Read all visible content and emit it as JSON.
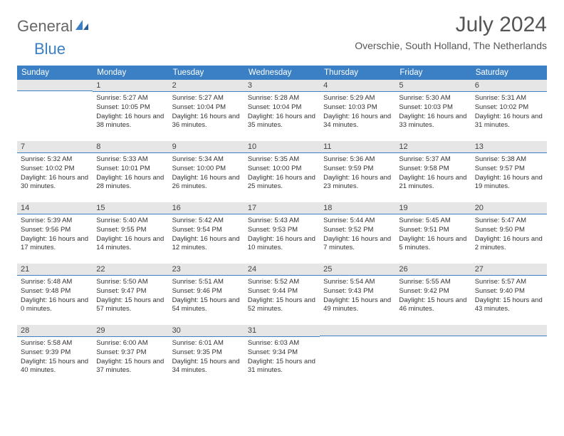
{
  "brand": {
    "part1": "General",
    "part2": "Blue"
  },
  "title": "July 2024",
  "location": "Overschie, South Holland, The Netherlands",
  "columns": [
    "Sunday",
    "Monday",
    "Tuesday",
    "Wednesday",
    "Thursday",
    "Friday",
    "Saturday"
  ],
  "colors": {
    "header_bg": "#3b7fc4",
    "header_text": "#ffffff",
    "daynum_bg": "#e6e6e6",
    "daynum_border": "#3b7fc4",
    "body_text": "#333333",
    "title_text": "#555555",
    "page_bg": "#ffffff"
  },
  "weeks": [
    [
      null,
      {
        "n": "1",
        "sr": "5:27 AM",
        "ss": "10:05 PM",
        "dl": "16 hours and 38 minutes."
      },
      {
        "n": "2",
        "sr": "5:27 AM",
        "ss": "10:04 PM",
        "dl": "16 hours and 36 minutes."
      },
      {
        "n": "3",
        "sr": "5:28 AM",
        "ss": "10:04 PM",
        "dl": "16 hours and 35 minutes."
      },
      {
        "n": "4",
        "sr": "5:29 AM",
        "ss": "10:03 PM",
        "dl": "16 hours and 34 minutes."
      },
      {
        "n": "5",
        "sr": "5:30 AM",
        "ss": "10:03 PM",
        "dl": "16 hours and 33 minutes."
      },
      {
        "n": "6",
        "sr": "5:31 AM",
        "ss": "10:02 PM",
        "dl": "16 hours and 31 minutes."
      }
    ],
    [
      {
        "n": "7",
        "sr": "5:32 AM",
        "ss": "10:02 PM",
        "dl": "16 hours and 30 minutes."
      },
      {
        "n": "8",
        "sr": "5:33 AM",
        "ss": "10:01 PM",
        "dl": "16 hours and 28 minutes."
      },
      {
        "n": "9",
        "sr": "5:34 AM",
        "ss": "10:00 PM",
        "dl": "16 hours and 26 minutes."
      },
      {
        "n": "10",
        "sr": "5:35 AM",
        "ss": "10:00 PM",
        "dl": "16 hours and 25 minutes."
      },
      {
        "n": "11",
        "sr": "5:36 AM",
        "ss": "9:59 PM",
        "dl": "16 hours and 23 minutes."
      },
      {
        "n": "12",
        "sr": "5:37 AM",
        "ss": "9:58 PM",
        "dl": "16 hours and 21 minutes."
      },
      {
        "n": "13",
        "sr": "5:38 AM",
        "ss": "9:57 PM",
        "dl": "16 hours and 19 minutes."
      }
    ],
    [
      {
        "n": "14",
        "sr": "5:39 AM",
        "ss": "9:56 PM",
        "dl": "16 hours and 17 minutes."
      },
      {
        "n": "15",
        "sr": "5:40 AM",
        "ss": "9:55 PM",
        "dl": "16 hours and 14 minutes."
      },
      {
        "n": "16",
        "sr": "5:42 AM",
        "ss": "9:54 PM",
        "dl": "16 hours and 12 minutes."
      },
      {
        "n": "17",
        "sr": "5:43 AM",
        "ss": "9:53 PM",
        "dl": "16 hours and 10 minutes."
      },
      {
        "n": "18",
        "sr": "5:44 AM",
        "ss": "9:52 PM",
        "dl": "16 hours and 7 minutes."
      },
      {
        "n": "19",
        "sr": "5:45 AM",
        "ss": "9:51 PM",
        "dl": "16 hours and 5 minutes."
      },
      {
        "n": "20",
        "sr": "5:47 AM",
        "ss": "9:50 PM",
        "dl": "16 hours and 2 minutes."
      }
    ],
    [
      {
        "n": "21",
        "sr": "5:48 AM",
        "ss": "9:48 PM",
        "dl": "16 hours and 0 minutes."
      },
      {
        "n": "22",
        "sr": "5:50 AM",
        "ss": "9:47 PM",
        "dl": "15 hours and 57 minutes."
      },
      {
        "n": "23",
        "sr": "5:51 AM",
        "ss": "9:46 PM",
        "dl": "15 hours and 54 minutes."
      },
      {
        "n": "24",
        "sr": "5:52 AM",
        "ss": "9:44 PM",
        "dl": "15 hours and 52 minutes."
      },
      {
        "n": "25",
        "sr": "5:54 AM",
        "ss": "9:43 PM",
        "dl": "15 hours and 49 minutes."
      },
      {
        "n": "26",
        "sr": "5:55 AM",
        "ss": "9:42 PM",
        "dl": "15 hours and 46 minutes."
      },
      {
        "n": "27",
        "sr": "5:57 AM",
        "ss": "9:40 PM",
        "dl": "15 hours and 43 minutes."
      }
    ],
    [
      {
        "n": "28",
        "sr": "5:58 AM",
        "ss": "9:39 PM",
        "dl": "15 hours and 40 minutes."
      },
      {
        "n": "29",
        "sr": "6:00 AM",
        "ss": "9:37 PM",
        "dl": "15 hours and 37 minutes."
      },
      {
        "n": "30",
        "sr": "6:01 AM",
        "ss": "9:35 PM",
        "dl": "15 hours and 34 minutes."
      },
      {
        "n": "31",
        "sr": "6:03 AM",
        "ss": "9:34 PM",
        "dl": "15 hours and 31 minutes."
      },
      null,
      null,
      null
    ]
  ],
  "labels": {
    "sunrise": "Sunrise:",
    "sunset": "Sunset:",
    "daylight": "Daylight:"
  }
}
